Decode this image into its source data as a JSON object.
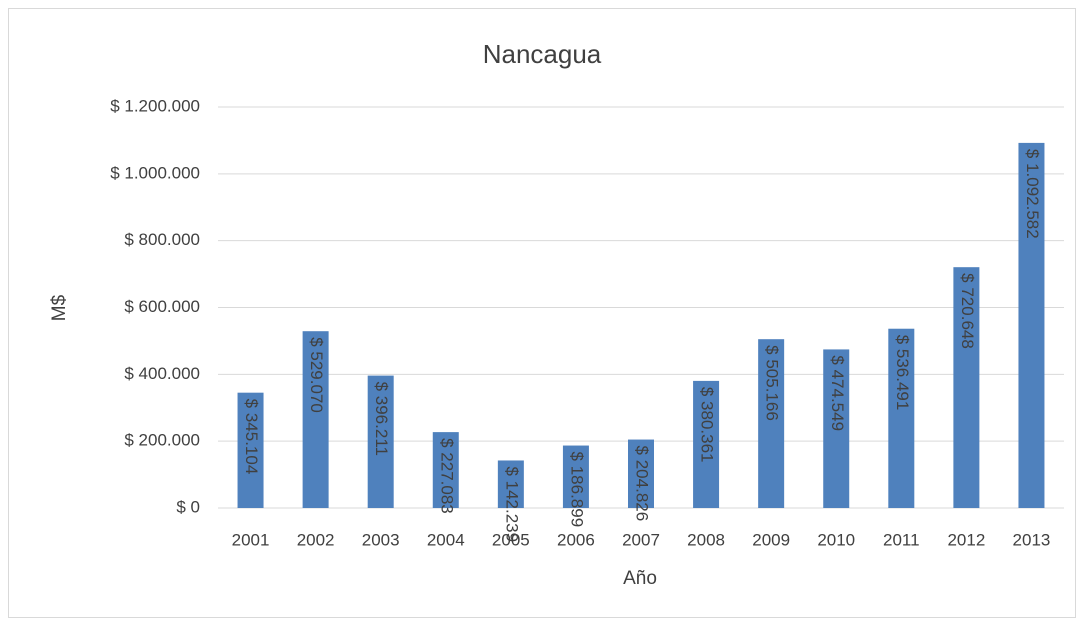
{
  "chart_data": {
    "type": "bar",
    "title": "Nancagua",
    "x_label": "Año",
    "y_label": "M$",
    "categories": [
      "2001",
      "2002",
      "2003",
      "2004",
      "2005",
      "2006",
      "2007",
      "2008",
      "2009",
      "2010",
      "2011",
      "2012",
      "2013"
    ],
    "values": [
      345104,
      529070,
      396211,
      227083,
      142239,
      186899,
      204826,
      380361,
      505166,
      474549,
      536491,
      720648,
      1092582
    ],
    "value_labels": [
      "$ 345.104",
      "$ 529.070",
      "$ 396.211",
      "$ 227.083",
      "$ 142.239",
      "$ 186.899",
      "$ 204.826",
      "$ 380.361",
      "$ 505.166",
      "$ 474.549",
      "$ 536.491",
      "$ 720.648",
      "$ 1.092.582"
    ],
    "color": "#4f81bd",
    "ylim": [
      0,
      1200000
    ],
    "yticks": [
      {
        "value": 0,
        "label": "$ 0"
      },
      {
        "value": 200000,
        "label": "$ 200.000"
      },
      {
        "value": 400000,
        "label": "$ 400.000"
      },
      {
        "value": 600000,
        "label": "$ 600.000"
      },
      {
        "value": 800000,
        "label": "$ 800.000"
      },
      {
        "value": 1000000,
        "label": "$ 1.000.000"
      },
      {
        "value": 1200000,
        "label": "$ 1.200.000"
      }
    ],
    "grid": true
  }
}
